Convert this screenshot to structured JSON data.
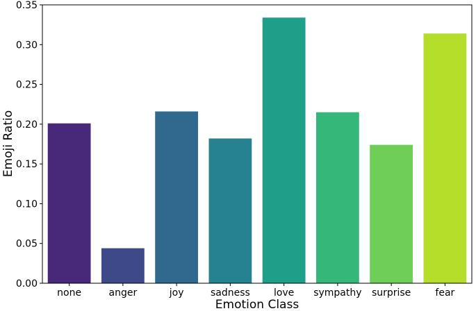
{
  "chart_data": {
    "type": "bar",
    "xlabel": "Emotion Class",
    "ylabel": "Emoji Ratio",
    "ylim": [
      0,
      0.35
    ],
    "yticks": [
      "0.00",
      "0.05",
      "0.10",
      "0.15",
      "0.20",
      "0.25",
      "0.30",
      "0.35"
    ],
    "grid": false,
    "categories": [
      "none",
      "anger",
      "joy",
      "sadness",
      "love",
      "sympathy",
      "surprise",
      "fear"
    ],
    "values": [
      0.201,
      0.044,
      0.216,
      0.182,
      0.334,
      0.215,
      0.174,
      0.314
    ],
    "colors": [
      "#482878",
      "#3e4989",
      "#31688e",
      "#26828e",
      "#1f9e89",
      "#35b779",
      "#6ece58",
      "#b5de2b"
    ]
  }
}
